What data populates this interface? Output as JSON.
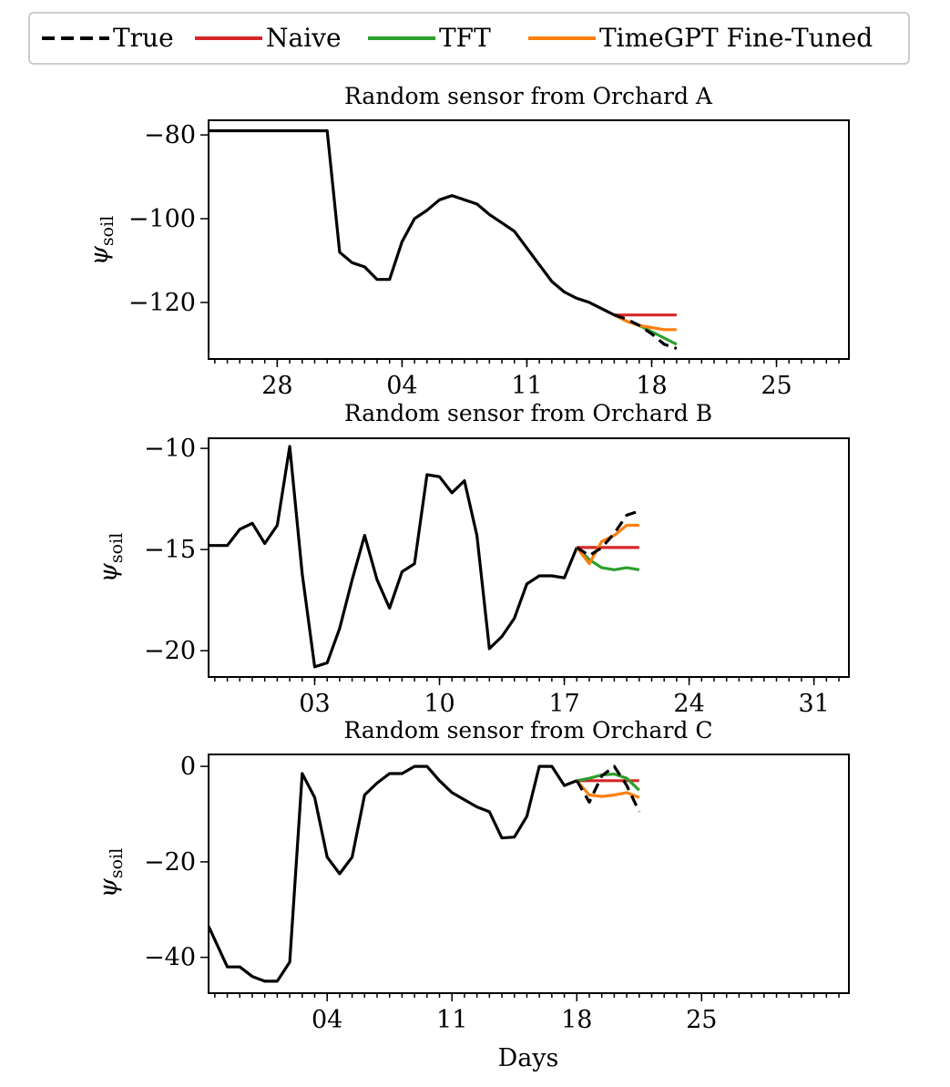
{
  "chart_data": {
    "type": "line",
    "legend": {
      "placement": "top-center",
      "entries": [
        {
          "label": "True",
          "color": "#000000",
          "style": "dashed"
        },
        {
          "label": "Naive",
          "color": "#d62728",
          "style": "solid"
        },
        {
          "label": "TFT",
          "color": "#2ca02c",
          "style": "solid"
        },
        {
          "label": "TimeGPT Fine-Tuned",
          "color": "#ff7f0e",
          "style": "solid"
        }
      ]
    },
    "xlabel": "Days",
    "panels": [
      {
        "title": "Random sensor from Orchard A",
        "ylabel": "ψsoil",
        "xlim": [
          -1.5,
          49.8
        ],
        "ylim": [
          -133.5,
          -76.5
        ],
        "yticks": [
          -80,
          -100,
          -120
        ],
        "xticks": [
          {
            "x": 4,
            "label": "28"
          },
          {
            "x": 14,
            "label": "04"
          },
          {
            "x": 24,
            "label": "11"
          },
          {
            "x": 34,
            "label": "18"
          },
          {
            "x": 44,
            "label": "25"
          }
        ],
        "history": [
          [
            -1.5,
            -79
          ],
          [
            0,
            -79
          ],
          [
            1,
            -79
          ],
          [
            2,
            -79
          ],
          [
            3,
            -79
          ],
          [
            4,
            -79
          ],
          [
            5,
            -79
          ],
          [
            6,
            -79
          ],
          [
            7,
            -79
          ],
          [
            8,
            -79
          ],
          [
            9,
            -108
          ],
          [
            10,
            -110.5
          ],
          [
            11,
            -111.5
          ],
          [
            12,
            -114.5
          ],
          [
            13,
            -114.5
          ],
          [
            14,
            -105.5
          ],
          [
            15,
            -100
          ],
          [
            16,
            -98
          ],
          [
            17,
            -95.5
          ],
          [
            18,
            -94.5
          ],
          [
            19,
            -95.5
          ],
          [
            20,
            -96.5
          ],
          [
            21,
            -99
          ],
          [
            22,
            -101
          ],
          [
            23,
            -103
          ],
          [
            24,
            -107
          ],
          [
            25,
            -111
          ],
          [
            26,
            -115
          ],
          [
            27,
            -117.5
          ],
          [
            28,
            -119
          ],
          [
            29,
            -120
          ],
          [
            30,
            -121.5
          ],
          [
            31,
            -123
          ]
        ],
        "true": [
          [
            31,
            -123
          ],
          [
            32,
            -124
          ],
          [
            33,
            -125.5
          ],
          [
            34,
            -127.5
          ],
          [
            35,
            -130
          ],
          [
            36,
            -131
          ]
        ],
        "naive": [
          [
            31,
            -123
          ],
          [
            32,
            -123
          ],
          [
            33,
            -123
          ],
          [
            34,
            -123
          ],
          [
            35,
            -123
          ],
          [
            36,
            -123
          ]
        ],
        "tft": [
          [
            31,
            -123
          ],
          [
            32,
            -124.5
          ],
          [
            33,
            -125.5
          ],
          [
            34,
            -127
          ],
          [
            35,
            -128.5
          ],
          [
            36,
            -130
          ]
        ],
        "timegpt": [
          [
            31,
            -123
          ],
          [
            32,
            -124.5
          ],
          [
            33,
            -125.5
          ],
          [
            34,
            -126
          ],
          [
            35,
            -126.5
          ],
          [
            36,
            -126.5
          ]
        ]
      },
      {
        "title": "Random sensor from Orchard B",
        "ylabel": "ψsoil",
        "xlim": [
          -1.5,
          49.8
        ],
        "ylim": [
          -21.3,
          -9.5
        ],
        "yticks": [
          -10,
          -15,
          -20
        ],
        "xticks": [
          {
            "x": 7,
            "label": "03"
          },
          {
            "x": 17,
            "label": "10"
          },
          {
            "x": 27,
            "label": "17"
          },
          {
            "x": 37,
            "label": "24"
          },
          {
            "x": 47,
            "label": "31"
          }
        ],
        "history": [
          [
            -1.5,
            -14.8
          ],
          [
            0,
            -14.8
          ],
          [
            1,
            -14
          ],
          [
            2,
            -13.7
          ],
          [
            3,
            -14.7
          ],
          [
            4,
            -13.8
          ],
          [
            5,
            -9.9
          ],
          [
            6,
            -16.2
          ],
          [
            7,
            -20.8
          ],
          [
            8,
            -20.6
          ],
          [
            9,
            -18.9
          ],
          [
            10,
            -16.5
          ],
          [
            11,
            -14.3
          ],
          [
            12,
            -16.5
          ],
          [
            13,
            -17.9
          ],
          [
            14,
            -16.1
          ],
          [
            15,
            -15.7
          ],
          [
            16,
            -11.3
          ],
          [
            17,
            -11.4
          ],
          [
            18,
            -12.2
          ],
          [
            19,
            -11.6
          ],
          [
            20,
            -14.3
          ],
          [
            21,
            -19.9
          ],
          [
            22,
            -19.3
          ],
          [
            23,
            -18.4
          ],
          [
            24,
            -16.7
          ],
          [
            25,
            -16.3
          ],
          [
            26,
            -16.3
          ],
          [
            27,
            -16.4
          ],
          [
            28,
            -14.9
          ]
        ],
        "true": [
          [
            28,
            -14.9
          ],
          [
            29,
            -15.3
          ],
          [
            30,
            -14.9
          ],
          [
            31,
            -14.2
          ],
          [
            32,
            -13.3
          ],
          [
            33,
            -13.1
          ]
        ],
        "naive": [
          [
            28,
            -14.9
          ],
          [
            29,
            -14.9
          ],
          [
            30,
            -14.9
          ],
          [
            31,
            -14.9
          ],
          [
            32,
            -14.9
          ],
          [
            33,
            -14.9
          ]
        ],
        "tft": [
          [
            28,
            -14.9
          ],
          [
            29,
            -15.5
          ],
          [
            30,
            -15.9
          ],
          [
            31,
            -16
          ],
          [
            32,
            -15.9
          ],
          [
            33,
            -16
          ]
        ],
        "timegpt": [
          [
            28,
            -14.9
          ],
          [
            29,
            -15.7
          ],
          [
            30,
            -14.6
          ],
          [
            31,
            -14.3
          ],
          [
            32,
            -13.8
          ],
          [
            33,
            -13.8
          ]
        ]
      },
      {
        "title": "Random sensor from Orchard C",
        "ylabel": "ψsoil",
        "xlim": [
          -1.5,
          49.8
        ],
        "ylim": [
          -47.5,
          2.5
        ],
        "yticks": [
          0,
          -20,
          -40
        ],
        "xticks": [
          {
            "x": 8,
            "label": "04"
          },
          {
            "x": 18,
            "label": "11"
          },
          {
            "x": 28,
            "label": "18"
          },
          {
            "x": 38,
            "label": "25"
          }
        ],
        "history": [
          [
            -1.5,
            -33.5
          ],
          [
            0,
            -42
          ],
          [
            1,
            -42
          ],
          [
            2,
            -44
          ],
          [
            3,
            -45
          ],
          [
            4,
            -45
          ],
          [
            5,
            -41
          ],
          [
            6,
            -1.5
          ],
          [
            7,
            -6.5
          ],
          [
            8,
            -19
          ],
          [
            9,
            -22.5
          ],
          [
            10,
            -19
          ],
          [
            11,
            -6
          ],
          [
            12,
            -3.5
          ],
          [
            13,
            -1.5
          ],
          [
            14,
            -1.5
          ],
          [
            15,
            0
          ],
          [
            16,
            0
          ],
          [
            17,
            -3
          ],
          [
            18,
            -5.5
          ],
          [
            19,
            -7
          ],
          [
            20,
            -8.5
          ],
          [
            21,
            -9.5
          ],
          [
            22,
            -15
          ],
          [
            23,
            -14.8
          ],
          [
            24,
            -10.5
          ],
          [
            25,
            0
          ],
          [
            26,
            0
          ],
          [
            27,
            -4
          ],
          [
            28,
            -3
          ]
        ],
        "true": [
          [
            28,
            -3
          ],
          [
            29,
            -7.5
          ],
          [
            30,
            -2
          ],
          [
            31,
            0
          ],
          [
            32,
            -4
          ],
          [
            33,
            -9.5
          ]
        ],
        "naive": [
          [
            28,
            -3
          ],
          [
            29,
            -3
          ],
          [
            30,
            -3
          ],
          [
            31,
            -3
          ],
          [
            32,
            -3
          ],
          [
            33,
            -3
          ]
        ],
        "tft": [
          [
            28,
            -3
          ],
          [
            29,
            -2.5
          ],
          [
            30,
            -1.8
          ],
          [
            31,
            -1.6
          ],
          [
            32,
            -2.5
          ],
          [
            33,
            -5
          ]
        ],
        "timegpt": [
          [
            28,
            -3
          ],
          [
            29,
            -6
          ],
          [
            30,
            -6.3
          ],
          [
            31,
            -6
          ],
          [
            32,
            -5.5
          ],
          [
            33,
            -6.5
          ]
        ]
      }
    ]
  }
}
